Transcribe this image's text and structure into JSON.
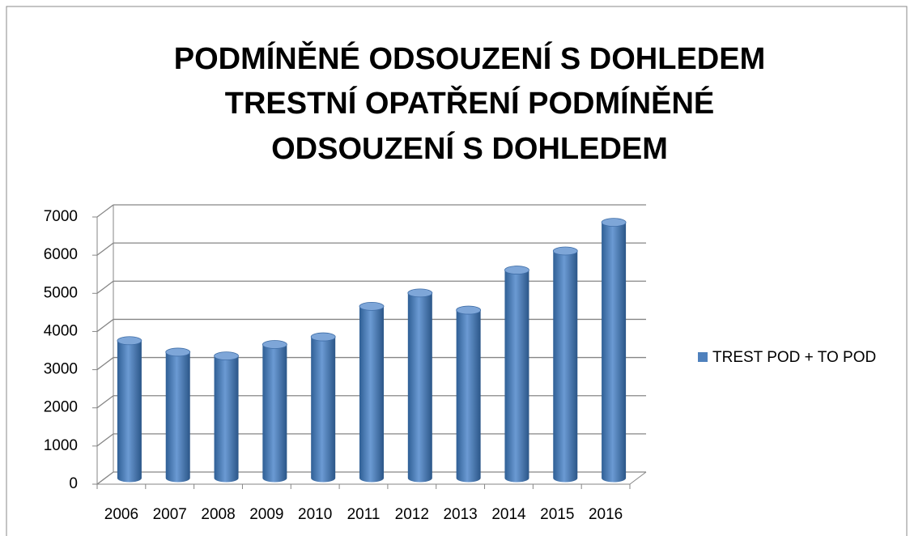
{
  "chart_data": {
    "type": "bar",
    "title": [
      "PODMÍNĚNÉ ODSOUZENÍ S DOHLEDEM",
      "TRESTNÍ OPATŘENÍ PODMÍNĚNÉ",
      "ODSOUZENÍ S DOHLEDEM"
    ],
    "categories": [
      "2006",
      "2007",
      "2008",
      "2009",
      "2010",
      "2011",
      "2012",
      "2013",
      "2014",
      "2015",
      "2016"
    ],
    "series": [
      {
        "name": "TREST POD + TO POD",
        "color": "#4f81bd",
        "values": [
          3600,
          3300,
          3200,
          3500,
          3700,
          4500,
          4850,
          4400,
          5450,
          5950,
          6700
        ]
      }
    ],
    "ylim": [
      0,
      7000
    ],
    "yticks": [
      0,
      1000,
      2000,
      3000,
      4000,
      5000,
      6000,
      7000
    ],
    "grid": true,
    "legend": "right"
  }
}
